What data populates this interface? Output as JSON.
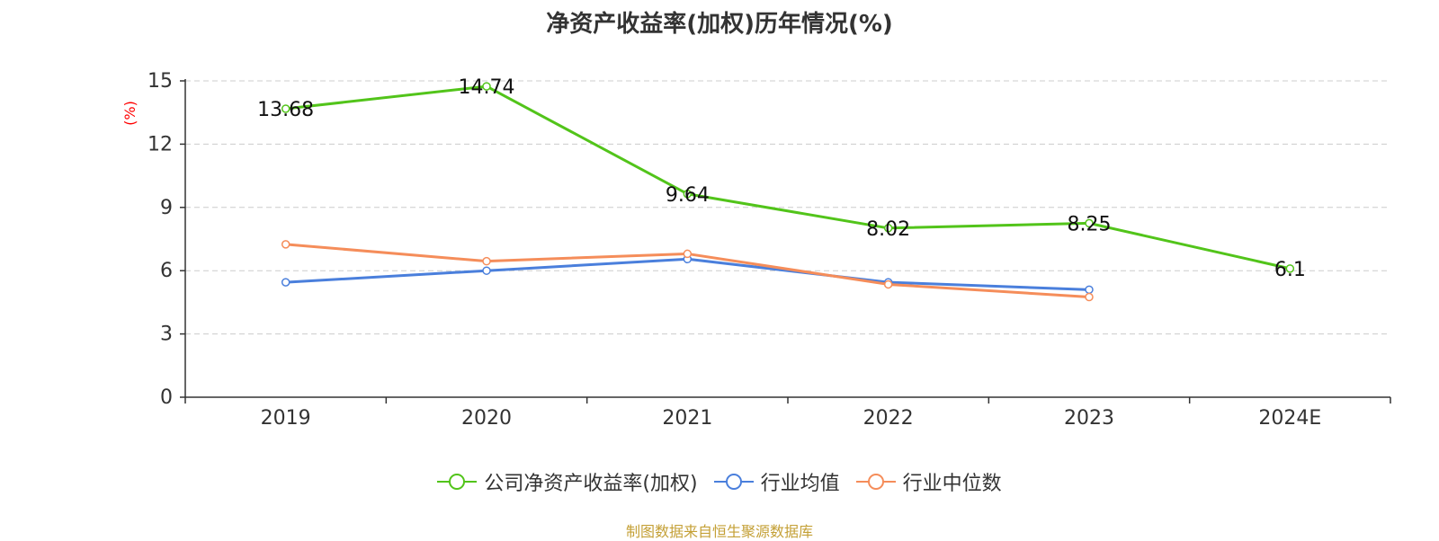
{
  "chart_data": {
    "type": "line",
    "title": "净资产收益率(加权)历年情况(%)",
    "ylabel": "(%)",
    "xlabel": "",
    "categories": [
      "2019",
      "2020",
      "2021",
      "2022",
      "2023",
      "2024E"
    ],
    "ylim": [
      0,
      15
    ],
    "yticks": [
      0,
      3,
      6,
      9,
      12,
      15
    ],
    "grid": true,
    "legend_position": "bottom-center",
    "series": [
      {
        "name": "公司净资产收益率(加权)",
        "color": "#52c41a",
        "values": [
          13.68,
          14.74,
          9.64,
          8.02,
          8.25,
          6.1
        ],
        "labels": [
          "13.68",
          "14.74",
          "9.64",
          "8.02",
          "8.25",
          "6.1"
        ]
      },
      {
        "name": "行业均值",
        "color": "#4a7fdc",
        "values": [
          5.45,
          6.0,
          6.55,
          5.45,
          5.1,
          null
        ]
      },
      {
        "name": "行业中位数",
        "color": "#f58d5a",
        "values": [
          7.25,
          6.45,
          6.8,
          5.35,
          4.75,
          null
        ]
      }
    ]
  },
  "source_note": "制图数据来自恒生聚源数据库",
  "axis_color": "#333333",
  "grid_color": "#cccccc",
  "ylabel_color": "#ff0000"
}
